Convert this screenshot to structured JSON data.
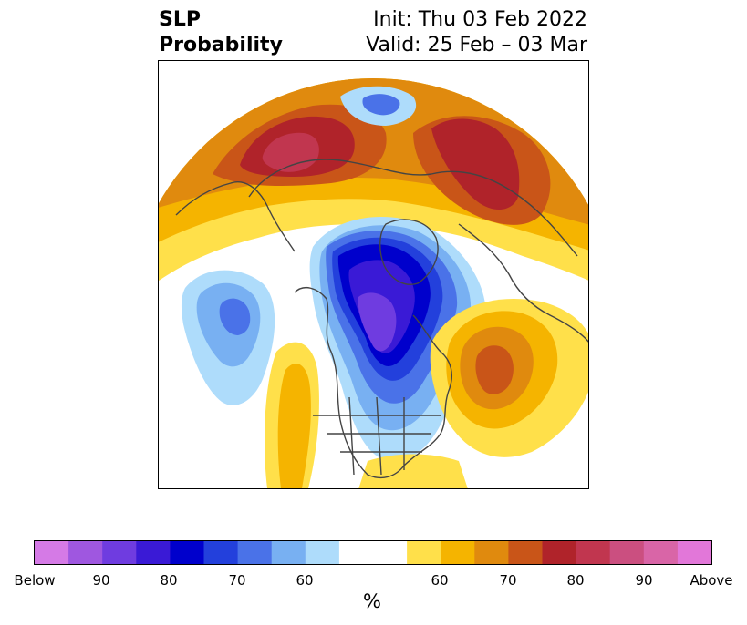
{
  "title": {
    "variable": "SLP",
    "product": "Probability",
    "init": "Init: Thu 03 Feb 2022",
    "valid": "Valid: 25 Feb – 03 Mar"
  },
  "colorbar": {
    "colors": [
      "#d57ae6",
      "#9f57e0",
      "#6f3ce0",
      "#3a1ad6",
      "#0000cc",
      "#2340dc",
      "#4a72e8",
      "#78b0f2",
      "#aedcfb",
      "#ffffff",
      "#ffffff",
      "#ffe04a",
      "#f5b400",
      "#e08a0e",
      "#c95518",
      "#b0232a",
      "#c1364f",
      "#cb4f80",
      "#d965a7",
      "#e277d9"
    ],
    "tick_labels": [
      "Below",
      "90",
      "80",
      "70",
      "60",
      "",
      "60",
      "70",
      "80",
      "90",
      "Above"
    ],
    "units": "%"
  },
  "map_colors": {
    "blue_1": "#aedcfb",
    "blue_2": "#78b0f2",
    "blue_3": "#4a72e8",
    "blue_4": "#2340dc",
    "blue_5": "#0000cc",
    "blue_6": "#3a1ad6",
    "blue_7": "#6f3ce0",
    "warm_1": "#ffe04a",
    "warm_2": "#f5b400",
    "warm_3": "#e08a0e",
    "warm_4": "#c95518",
    "warm_5": "#b0232a",
    "warm_6": "#c1364f",
    "coast": "#444444"
  }
}
